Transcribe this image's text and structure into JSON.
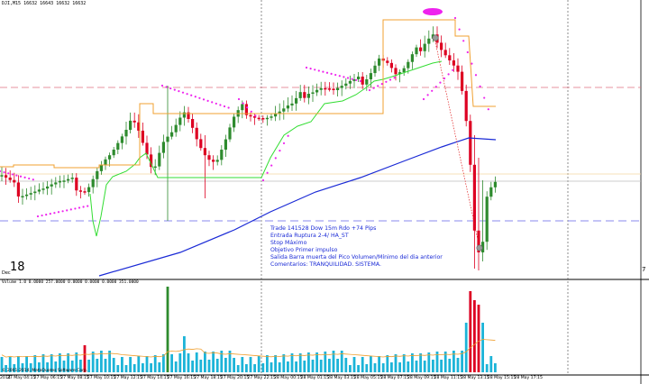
{
  "header": {
    "symbol_quotes": "DJI,M15  16632 16643  16632  16632"
  },
  "main_panel": {
    "corner_label": "18",
    "corner_prefix": "Dec",
    "right_label": "7",
    "annotation_lines": [
      "Trade 141528 Dow 15m Rdo +74 Pips",
      "Entrada  Ruptura 2-4/ HA_ST",
      "Stop Máximo",
      "Objetivo Primer impulso",
      "Salida Barra muerta del Pico Volumen/Mínimo del dia anterior",
      "Comentarios: TRANQUILIDAD. SISTEMA."
    ]
  },
  "volume_panel": {
    "header": "Volume 1.0  0.0000  257.0000  0.0000  0.0000  0.0000  351.0000",
    "copyright": "© 2001-2014, MetaQuotes Software Corp."
  },
  "time_axis": {
    "labels": [
      "2014",
      "27 May 04:15",
      "27 May 06:15",
      "27 May 08:15",
      "27 May 10:15",
      "27 May 12:15",
      "27 May 14:15",
      "27 May 16:15",
      "27 May 18:15",
      "27 May 20:15",
      "27 May 22:15",
      "28 May 00:15",
      "28 May 01:15",
      "28 May 03:15",
      "28 May 05:15",
      "28 May 07:15",
      "28 May 09:15",
      "28 May 11:15",
      "28 May 13:15",
      "28 May 15:15",
      "28 May 17:15"
    ]
  },
  "colors": {
    "bull": "#2e8b2e",
    "bear": "#dd0022",
    "ma_long": "#1a2ad6",
    "supertrend": "#33dd33",
    "psar": "#ee22ee",
    "donchian": "#f0a030",
    "dashed_red": "#e07080",
    "dashed_blue": "#8888ee",
    "volume_bar": "#1cb4d8"
  }
}
